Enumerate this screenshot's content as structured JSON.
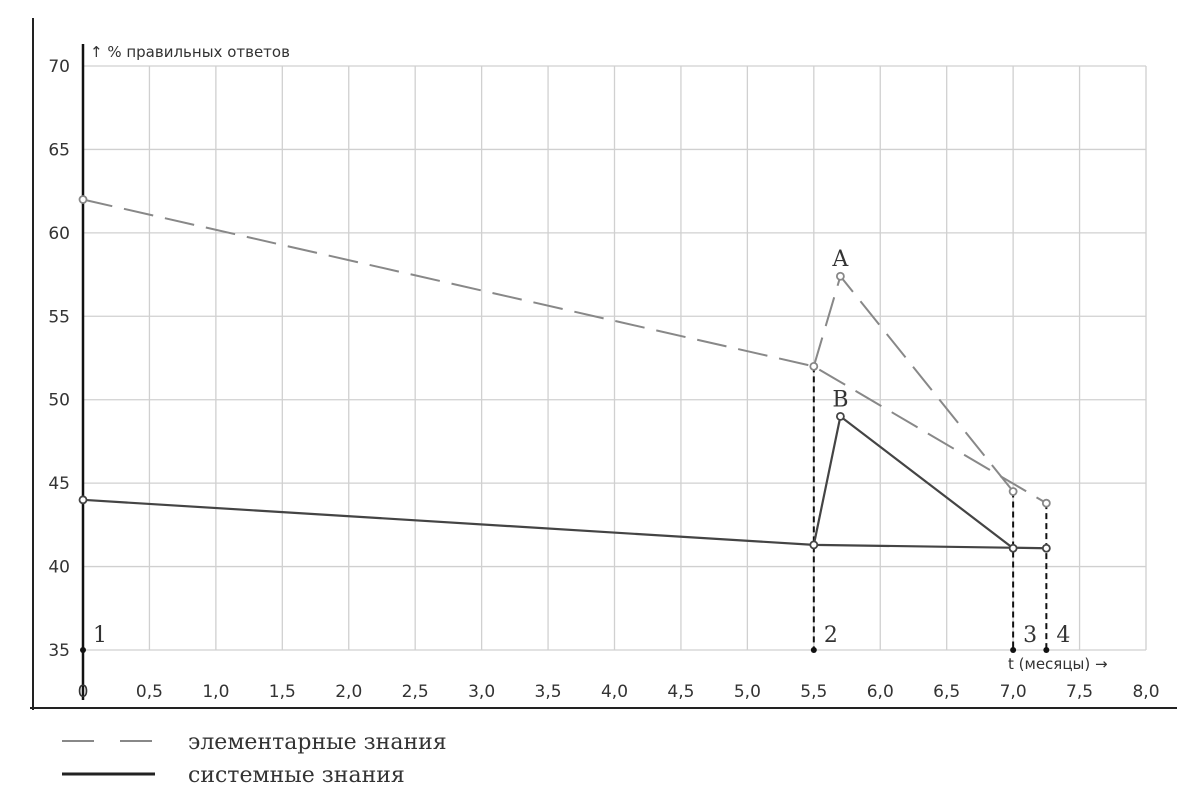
{
  "chart_data": {
    "type": "line",
    "ylabel": "↑ % правильных ответов",
    "xlabel": "t (месяцы) →",
    "xlim": [
      0,
      8
    ],
    "ylim": [
      35,
      70
    ],
    "grid": true,
    "x_ticks": [
      "0",
      "0,5",
      "1,0",
      "1,5",
      "2,0",
      "2,5",
      "3,0",
      "3,5",
      "4,0",
      "4,5",
      "5,0",
      "5,5",
      "6,0",
      "6,5",
      "7,0",
      "7,5",
      "8,0"
    ],
    "y_ticks": [
      "35",
      "40",
      "45",
      "50",
      "55",
      "60",
      "65",
      "70"
    ],
    "series": [
      {
        "name": "элементарные знания",
        "style": "dashed",
        "color": "#888888",
        "segments": [
          [
            [
              0,
              62
            ],
            [
              5.5,
              52
            ],
            [
              7.25,
              43.8
            ]
          ],
          [
            [
              5.5,
              52
            ],
            [
              5.7,
              57.4
            ],
            [
              7.0,
              44.5
            ]
          ]
        ],
        "points": [
          [
            0,
            62
          ],
          [
            5.5,
            52
          ],
          [
            5.7,
            57.4
          ],
          [
            7.0,
            44.5
          ],
          [
            7.25,
            43.8
          ]
        ]
      },
      {
        "name": "системные знания",
        "style": "solid",
        "color": "#444444",
        "segments": [
          [
            [
              0,
              44
            ],
            [
              5.5,
              41.3
            ],
            [
              7.25,
              41.1
            ]
          ],
          [
            [
              5.5,
              41.3
            ],
            [
              5.7,
              49
            ],
            [
              7.0,
              41.1
            ]
          ]
        ],
        "points": [
          [
            0,
            44
          ],
          [
            5.5,
            41.3
          ],
          [
            5.7,
            49
          ],
          [
            7.0,
            41.1
          ],
          [
            7.25,
            41.1
          ]
        ]
      }
    ],
    "annotations": [
      {
        "text": "A",
        "x": 5.7,
        "y": 57.4
      },
      {
        "text": "B",
        "x": 5.7,
        "y": 49
      }
    ],
    "markers": [
      {
        "label": "1",
        "x": 0,
        "y_top": 44
      },
      {
        "label": "2",
        "x": 5.5,
        "y_top": 52
      },
      {
        "label": "3",
        "x": 7.0,
        "y_top": 44.5
      },
      {
        "label": "4",
        "x": 7.25,
        "y_top": 43.8
      }
    ],
    "legend": {
      "position": "bottom-left",
      "entries": [
        {
          "label": "элементарные знания",
          "style": "dashed"
        },
        {
          "label": "системные знания",
          "style": "solid"
        }
      ]
    }
  }
}
